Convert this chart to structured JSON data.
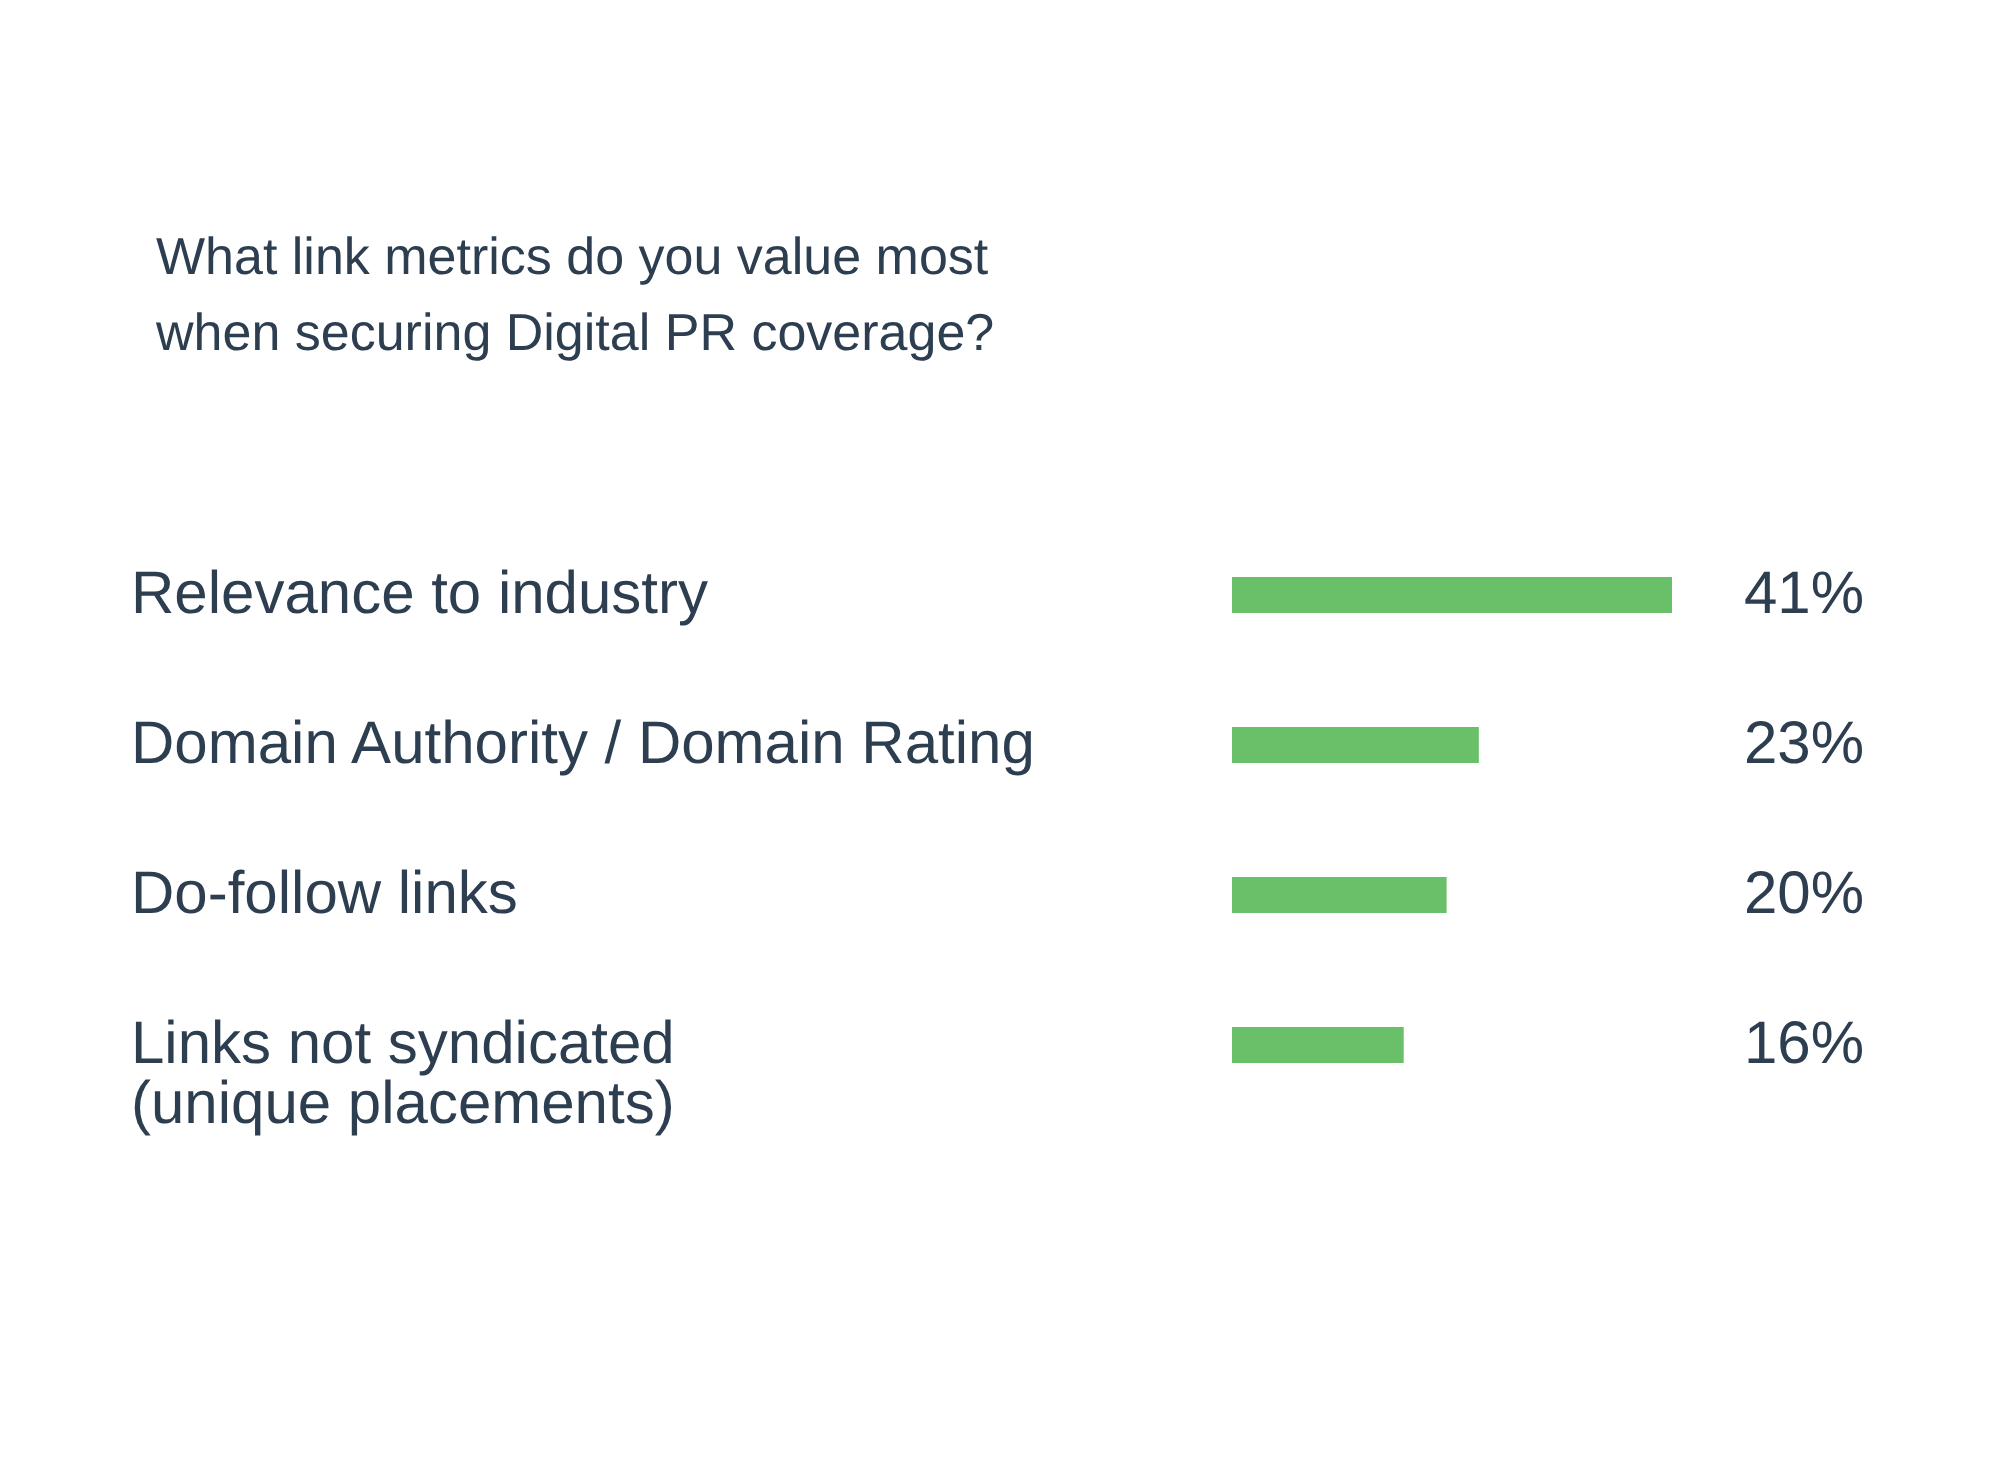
{
  "chart_data": {
    "type": "bar",
    "orientation": "horizontal",
    "title": "What link metrics do you value most\nwhen securing Digital PR coverage?",
    "categories": [
      "Relevance to industry",
      "Domain Authority / Domain Rating",
      "Do-follow links",
      "Links not syndicated\n(unique placements)"
    ],
    "values": [
      41,
      23,
      20,
      16
    ],
    "color": "#6abf69",
    "data_labels": true,
    "value_labels": [
      "41%",
      "23%",
      "20%",
      "16%"
    ]
  }
}
